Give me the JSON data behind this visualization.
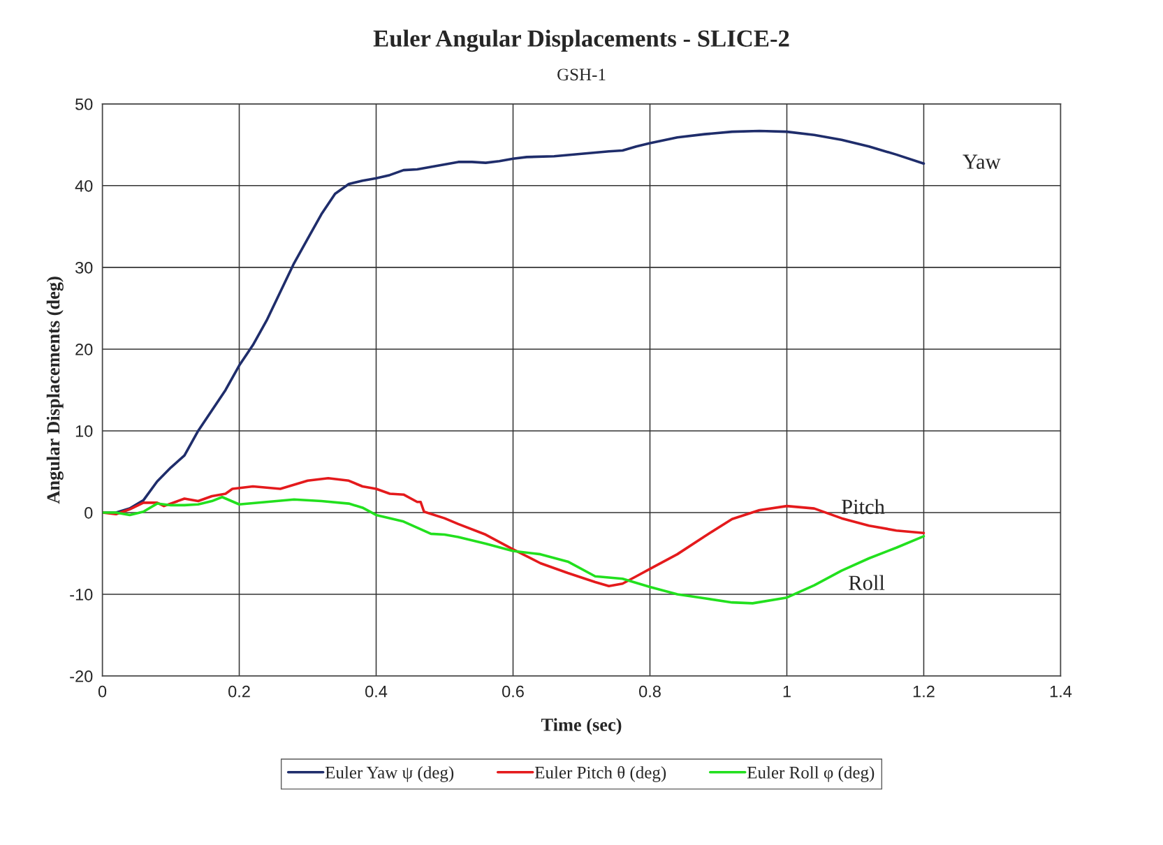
{
  "chart_data": {
    "type": "line",
    "title": "Euler Angular Displacements - SLICE-2",
    "subtitle": "GSH-1",
    "xlabel": "Time (sec)",
    "ylabel": "Angular Displacements (deg)",
    "xlim": [
      0,
      1.4
    ],
    "xticks": [
      0,
      0.2,
      0.4,
      0.6,
      0.8,
      1,
      1.2,
      1.4
    ],
    "ylim": [
      -20,
      50
    ],
    "yticks": [
      -20,
      -10,
      0,
      10,
      20,
      30,
      40,
      50
    ],
    "grid": true,
    "legend": "bottom",
    "marker": "none",
    "line_style": "solid",
    "series": [
      {
        "name": "Euler Yaw ψ (deg)",
        "color": "#1f2d6b",
        "x": [
          0,
          0.02,
          0.04,
          0.06,
          0.08,
          0.1,
          0.12,
          0.14,
          0.16,
          0.18,
          0.2,
          0.22,
          0.24,
          0.26,
          0.28,
          0.3,
          0.32,
          0.34,
          0.36,
          0.38,
          0.4,
          0.42,
          0.44,
          0.46,
          0.48,
          0.5,
          0.52,
          0.54,
          0.56,
          0.58,
          0.6,
          0.62,
          0.66,
          0.7,
          0.74,
          0.76,
          0.78,
          0.8,
          0.84,
          0.88,
          0.92,
          0.96,
          1.0,
          1.04,
          1.08,
          1.12,
          1.16,
          1.2
        ],
        "values": [
          0,
          0,
          0.5,
          1.5,
          3.8,
          5.5,
          7,
          10,
          12.5,
          15,
          18,
          20.5,
          23.5,
          27,
          30.5,
          33.5,
          36.5,
          39,
          40.2,
          40.6,
          40.9,
          41.3,
          41.9,
          42,
          42.3,
          42.6,
          42.9,
          42.9,
          42.8,
          43,
          43.3,
          43.5,
          43.6,
          43.9,
          44.2,
          44.3,
          44.8,
          45.2,
          45.9,
          46.3,
          46.6,
          46.7,
          46.6,
          46.2,
          45.6,
          44.8,
          43.8,
          42.7
        ]
      },
      {
        "name": "Euler Pitch θ (deg)",
        "color": "#e41a1c",
        "x": [
          0,
          0.02,
          0.04,
          0.06,
          0.08,
          0.09,
          0.12,
          0.14,
          0.16,
          0.18,
          0.19,
          0.22,
          0.26,
          0.3,
          0.33,
          0.36,
          0.38,
          0.4,
          0.42,
          0.44,
          0.46,
          0.465,
          0.47,
          0.5,
          0.52,
          0.56,
          0.6,
          0.64,
          0.68,
          0.72,
          0.74,
          0.76,
          0.78,
          0.8,
          0.84,
          0.88,
          0.92,
          0.96,
          1.0,
          1.04,
          1.08,
          1.12,
          1.16,
          1.2
        ],
        "values": [
          0,
          -0.2,
          0.4,
          1.2,
          1.2,
          0.8,
          1.7,
          1.4,
          2.0,
          2.3,
          2.9,
          3.2,
          2.9,
          3.9,
          4.2,
          3.9,
          3.2,
          2.9,
          2.3,
          2.2,
          1.3,
          1.3,
          0.1,
          -0.7,
          -1.4,
          -2.7,
          -4.5,
          -6.2,
          -7.4,
          -8.5,
          -9.0,
          -8.7,
          -7.8,
          -6.9,
          -5.1,
          -2.9,
          -0.8,
          0.3,
          0.8,
          0.5,
          -0.7,
          -1.6,
          -2.2,
          -2.5
        ]
      },
      {
        "name": "Euler Roll φ (deg)",
        "color": "#22e01e",
        "x": [
          0,
          0.02,
          0.04,
          0.06,
          0.08,
          0.1,
          0.12,
          0.14,
          0.16,
          0.175,
          0.2,
          0.24,
          0.28,
          0.32,
          0.36,
          0.38,
          0.4,
          0.44,
          0.48,
          0.5,
          0.52,
          0.56,
          0.6,
          0.64,
          0.68,
          0.72,
          0.76,
          0.8,
          0.84,
          0.88,
          0.92,
          0.95,
          1.0,
          1.04,
          1.08,
          1.12,
          1.16,
          1.2
        ],
        "values": [
          0,
          0,
          -0.3,
          0.1,
          1.1,
          0.9,
          0.9,
          1.0,
          1.4,
          1.9,
          1.0,
          1.3,
          1.6,
          1.4,
          1.1,
          0.6,
          -0.3,
          -1.1,
          -2.6,
          -2.7,
          -3.0,
          -3.8,
          -4.7,
          -5.1,
          -6.0,
          -7.8,
          -8.1,
          -9.1,
          -10.0,
          -10.5,
          -11.0,
          -11.1,
          -10.4,
          -8.9,
          -7.1,
          -5.6,
          -4.3,
          -2.9
        ]
      }
    ],
    "annotations": [
      "Yaw",
      "Pitch",
      "Roll"
    ]
  }
}
